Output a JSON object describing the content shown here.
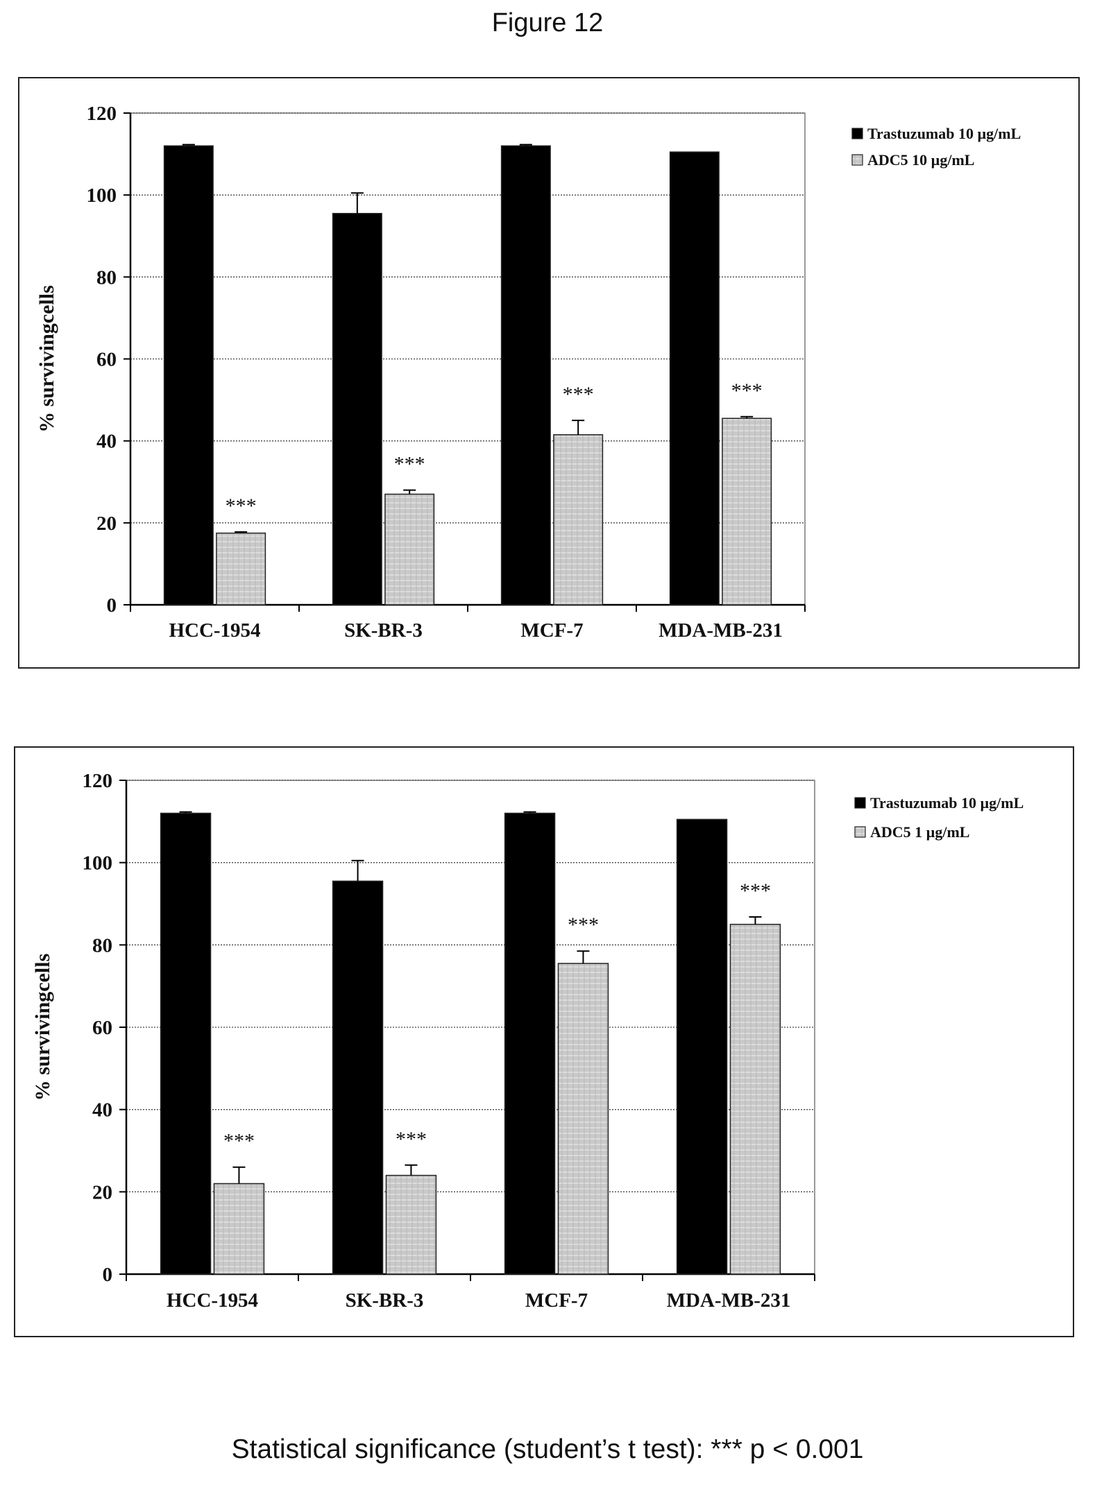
{
  "figure_title": "Figure 12",
  "footnote": "Statistical significance (student’s t test): *** p < 0.001",
  "chart_data": [
    {
      "type": "bar",
      "ylabel": "% survivingcells",
      "xlabel": "",
      "ylim": [
        0,
        120
      ],
      "yticks": [
        0,
        20,
        40,
        60,
        80,
        100,
        120
      ],
      "grid": true,
      "legend_position": "top-right",
      "categories": [
        "HCC-1954",
        "SK-BR-3",
        "MCF-7",
        "MDA-MB-231"
      ],
      "series": [
        {
          "name": "Trastuzumab  10 µg/mL",
          "values": [
            112,
            95.5,
            112,
            110.5
          ],
          "errors": [
            0.3,
            5,
            0.3,
            0
          ],
          "color": "#000000",
          "annotations": [
            "",
            "",
            "",
            ""
          ]
        },
        {
          "name": "ADC5  10 µg/mL",
          "values": [
            17.5,
            27,
            41.5,
            45.5
          ],
          "errors": [
            0.3,
            1,
            3.5,
            0.4
          ],
          "color": "#c8c8c8",
          "annotations": [
            "***",
            "***",
            "***",
            "***"
          ]
        }
      ]
    },
    {
      "type": "bar",
      "ylabel": "% survivingcells",
      "xlabel": "",
      "ylim": [
        0,
        120
      ],
      "yticks": [
        0,
        20,
        40,
        60,
        80,
        100,
        120
      ],
      "grid": true,
      "legend_position": "top-right",
      "categories": [
        "HCC-1954",
        "SK-BR-3",
        "MCF-7",
        "MDA-MB-231"
      ],
      "series": [
        {
          "name": "Trastuzumab  10 µg/mL",
          "values": [
            112,
            95.5,
            112,
            110.5
          ],
          "errors": [
            0.3,
            5,
            0.3,
            0
          ],
          "color": "#000000",
          "annotations": [
            "",
            "",
            "",
            ""
          ]
        },
        {
          "name": "ADC5  1 µg/mL",
          "values": [
            22,
            24,
            75.5,
            85
          ],
          "errors": [
            4,
            2.5,
            3,
            1.8
          ],
          "color": "#c8c8c8",
          "annotations": [
            "***",
            "***",
            "***",
            "***"
          ]
        }
      ]
    }
  ]
}
